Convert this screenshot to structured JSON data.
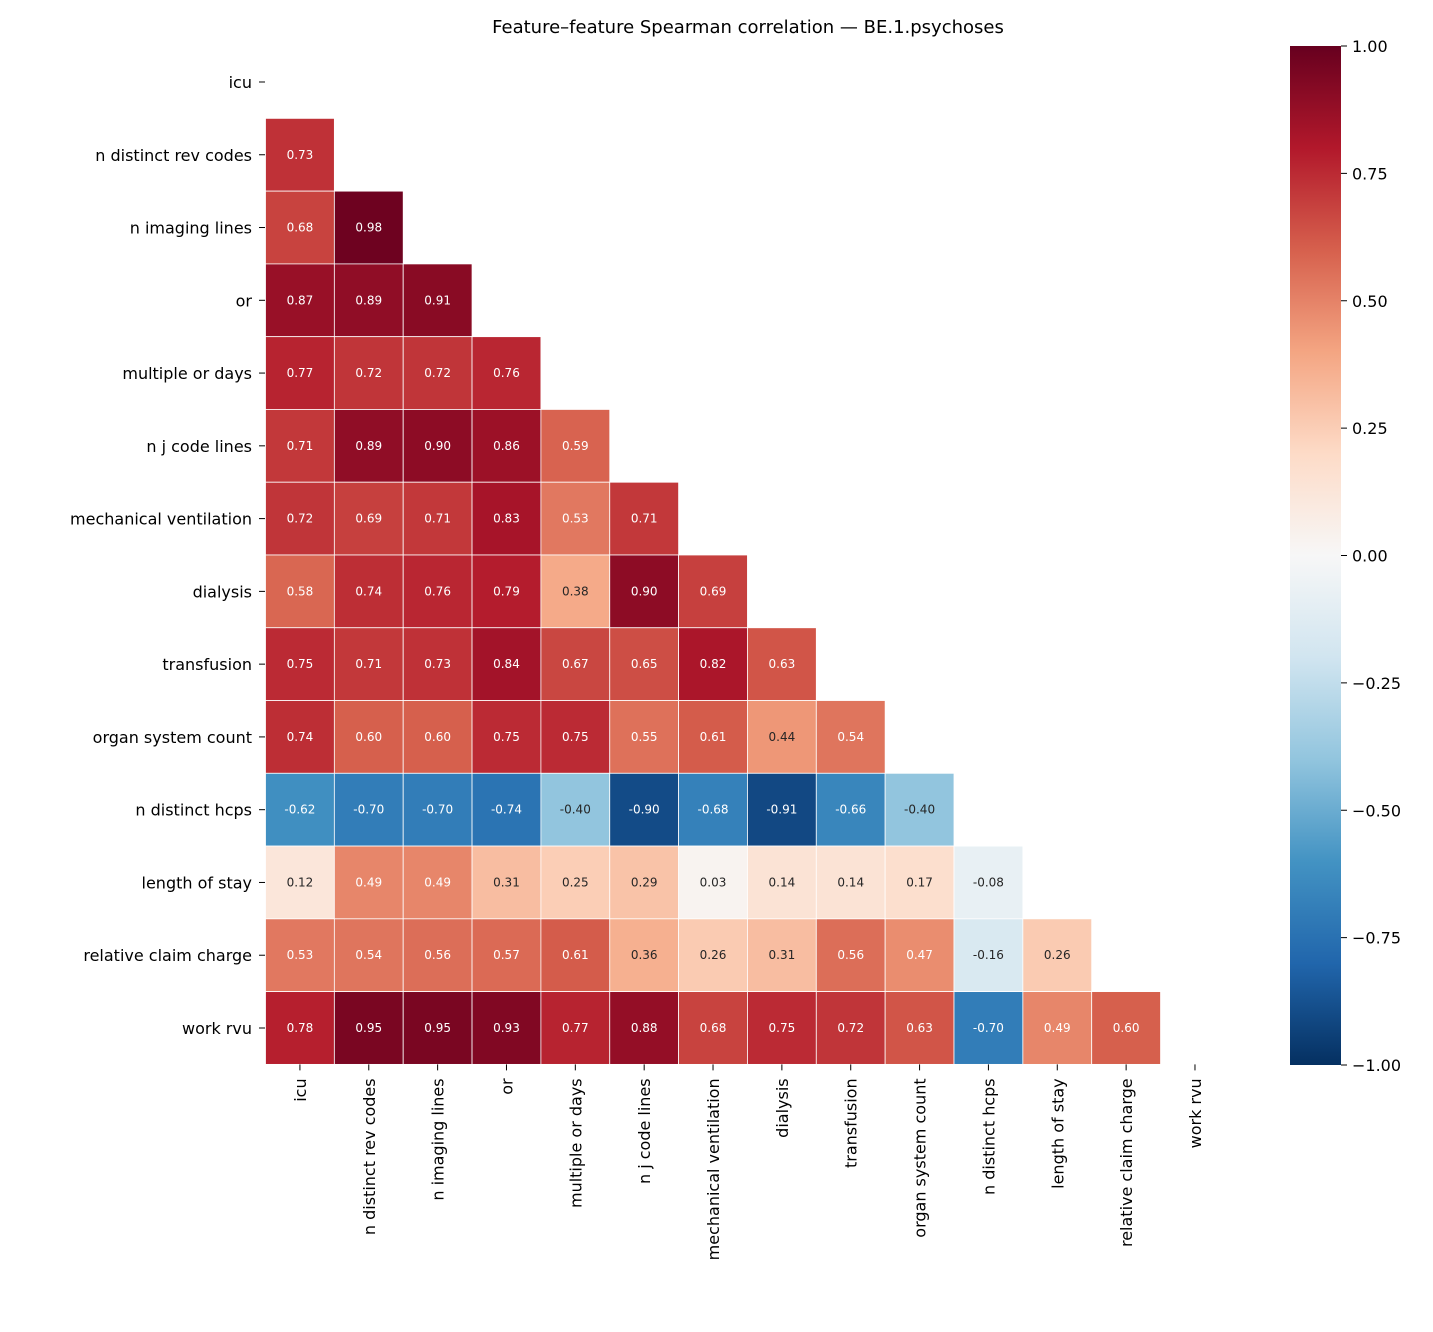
{
  "chart_data": {
    "type": "heatmap",
    "title": "Feature–feature Spearman correlation — BE.1.psychoses",
    "labels": [
      "icu",
      "n distinct rev codes",
      "n imaging lines",
      "or",
      "multiple or days",
      "n j code lines",
      "mechanical ventilation",
      "dialysis",
      "transfusion",
      "organ system count",
      "n distinct hcps",
      "length of stay",
      "relative claim charge",
      "work rvu"
    ],
    "mask": "upper triangle including diagonal",
    "lower_triangle": [
      [],
      [
        0.73
      ],
      [
        0.68,
        0.98
      ],
      [
        0.87,
        0.89,
        0.91
      ],
      [
        0.77,
        0.72,
        0.72,
        0.76
      ],
      [
        0.71,
        0.89,
        0.9,
        0.86,
        0.59
      ],
      [
        0.72,
        0.69,
        0.71,
        0.83,
        0.53,
        0.71
      ],
      [
        0.58,
        0.74,
        0.76,
        0.79,
        0.38,
        0.9,
        0.69
      ],
      [
        0.75,
        0.71,
        0.73,
        0.84,
        0.67,
        0.65,
        0.82,
        0.63
      ],
      [
        0.74,
        0.6,
        0.6,
        0.75,
        0.75,
        0.55,
        0.61,
        0.44,
        0.54
      ],
      [
        -0.62,
        -0.7,
        -0.7,
        -0.74,
        -0.4,
        -0.9,
        -0.68,
        -0.91,
        -0.66,
        -0.4
      ],
      [
        0.12,
        0.49,
        0.49,
        0.31,
        0.25,
        0.29,
        0.03,
        0.14,
        0.14,
        0.17,
        -0.08
      ],
      [
        0.53,
        0.54,
        0.56,
        0.57,
        0.61,
        0.36,
        0.26,
        0.31,
        0.56,
        0.47,
        -0.16,
        0.26
      ],
      [
        0.78,
        0.95,
        0.95,
        0.93,
        0.77,
        0.88,
        0.68,
        0.75,
        0.72,
        0.63,
        -0.7,
        0.49,
        0.6
      ]
    ],
    "colormap": "RdBu_r",
    "colormap_stops": [
      "#053061",
      "#2166ac",
      "#4393c3",
      "#92c5de",
      "#d1e5f0",
      "#f7f7f7",
      "#fddbc7",
      "#f4a582",
      "#d6604d",
      "#b2182b",
      "#67001f"
    ],
    "vmin": -1,
    "vmax": 1,
    "colorbar_ticks": [
      1.0,
      0.75,
      0.5,
      0.25,
      0.0,
      -0.25,
      -0.5,
      -0.75,
      -1.0
    ],
    "colorbar_tick_labels": [
      "1.00",
      "0.75",
      "0.50",
      "0.25",
      "0.00",
      "−0.25",
      "−0.50",
      "−0.75",
      "−1.00"
    ],
    "legend_placement": "right (colorbar)"
  }
}
